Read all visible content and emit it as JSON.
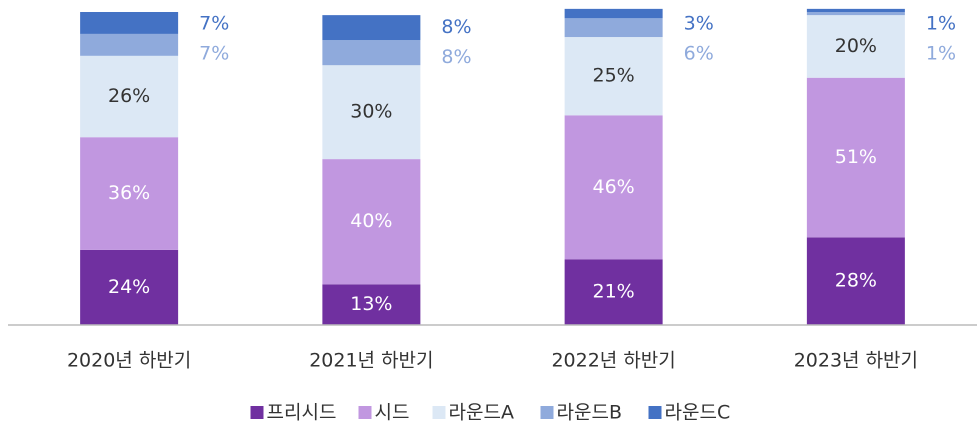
{
  "chart_data": {
    "type": "stacked_bar",
    "categories": [
      "2020년 하반기",
      "2021년 하반기",
      "2022년 하반기",
      "2023년 하반기"
    ],
    "series": [
      {
        "name": "프리시드",
        "color": "#7030a0",
        "values": [
          24,
          13,
          21,
          28
        ],
        "value_labels": [
          "24%",
          "13%",
          "21%",
          "28%"
        ]
      },
      {
        "name": "시드",
        "color": "#c197e0",
        "values": [
          36,
          40,
          46,
          51
        ],
        "value_labels": [
          "36%",
          "40%",
          "46%",
          "51%"
        ]
      },
      {
        "name": "라운드A",
        "color": "#dce8f5",
        "values": [
          26,
          30,
          25,
          20
        ],
        "value_labels": [
          "26%",
          "30%",
          "25%",
          "20%"
        ]
      },
      {
        "name": "라운드B",
        "color": "#8faadc",
        "values": [
          7,
          8,
          6,
          1
        ],
        "value_labels": [
          "7%",
          "8%",
          "6%",
          "1%"
        ]
      },
      {
        "name": "라운드C",
        "color": "#4472c4",
        "values": [
          7,
          8,
          3,
          1
        ],
        "value_labels": [
          "7%",
          "8%",
          "3%",
          "1%"
        ]
      }
    ],
    "ylim": [
      0,
      100
    ],
    "legend": "bottom"
  }
}
